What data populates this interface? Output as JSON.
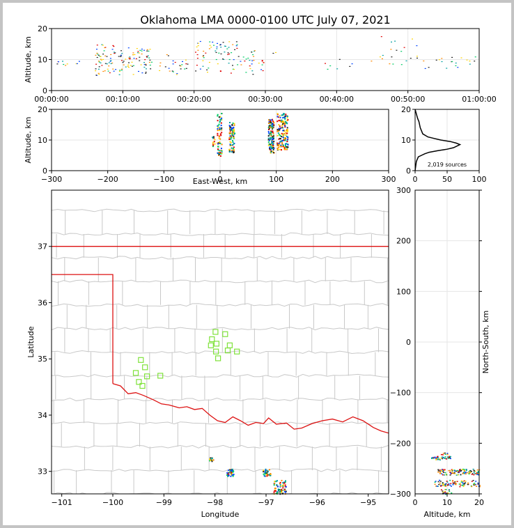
{
  "title": "Oklahoma LMA 0000-0100 UTC July 07, 2021",
  "colors": {
    "frame": "#000000",
    "grid": "#e6e6e6",
    "county": "#c8c8c8",
    "state_border": "#dd1111",
    "station": "#7fe23a",
    "histogram": "#000000",
    "sources": [
      "#0044ff",
      "#00a0a0",
      "#00cc66",
      "#ffd400",
      "#ff8800",
      "#e00000",
      "#202020"
    ]
  },
  "chart_data": [
    {
      "id": "time_altitude",
      "type": "scatter",
      "ylabel": "Altitude, km",
      "xlim_minutes": [
        0,
        60
      ],
      "ylim": [
        0,
        20
      ],
      "xtick_labels": [
        "00:00:00",
        "00:10:00",
        "00:20:00",
        "00:30:00",
        "00:40:00",
        "00:50:00",
        "01:00:00"
      ],
      "ytick_labels": [
        "0",
        "10",
        "20"
      ],
      "clusters": [
        {
          "t": [
            0.5,
            5
          ],
          "alt": [
            8,
            10
          ],
          "n": 10
        },
        {
          "t": [
            6,
            9.5
          ],
          "alt": [
            5,
            15
          ],
          "n": 60
        },
        {
          "t": [
            9.5,
            14
          ],
          "alt": [
            5,
            14
          ],
          "n": 70
        },
        {
          "t": [
            15,
            20
          ],
          "alt": [
            5,
            12
          ],
          "n": 25
        },
        {
          "t": [
            20,
            26
          ],
          "alt": [
            5,
            16
          ],
          "n": 70
        },
        {
          "t": [
            26,
            30
          ],
          "alt": [
            5,
            14
          ],
          "n": 30
        },
        {
          "t": [
            30,
            32
          ],
          "alt": [
            12,
            13
          ],
          "n": 2
        },
        {
          "t": [
            38,
            45
          ],
          "alt": [
            7,
            11
          ],
          "n": 8
        },
        {
          "t": [
            46,
            52
          ],
          "alt": [
            7,
            18
          ],
          "n": 20
        },
        {
          "t": [
            52,
            60
          ],
          "alt": [
            7,
            11
          ],
          "n": 20
        }
      ]
    },
    {
      "id": "ew_altitude",
      "type": "scatter",
      "xlabel": "East-West, km",
      "ylabel": "Altitude, km",
      "xlim": [
        -300,
        300
      ],
      "ylim": [
        0,
        20
      ],
      "xtick_labels": [
        "−300",
        "−200",
        "−100",
        "0",
        "100",
        "200",
        "300"
      ],
      "ytick_labels": [
        "0",
        "10",
        "20"
      ],
      "clusters": [
        {
          "x": [
            -15,
            -10
          ],
          "alt": [
            8,
            12
          ],
          "n": 12
        },
        {
          "x": [
            -6,
            2
          ],
          "alt": [
            5,
            19
          ],
          "n": 70
        },
        {
          "x": [
            15,
            25
          ],
          "alt": [
            6,
            16
          ],
          "n": 90
        },
        {
          "x": [
            85,
            95
          ],
          "alt": [
            6,
            17
          ],
          "n": 120
        },
        {
          "x": [
            100,
            120
          ],
          "alt": [
            7,
            19
          ],
          "n": 160
        }
      ]
    },
    {
      "id": "altitude_histogram",
      "type": "line",
      "xlim": [
        0,
        100
      ],
      "ylim": [
        0,
        20
      ],
      "xtick_labels": [
        "0",
        "50",
        "100"
      ],
      "ytick_labels": [
        "0",
        "10",
        "20"
      ],
      "annotation": "2,019 sources",
      "x": [
        0,
        2,
        5,
        10,
        15,
        22,
        35,
        50,
        60,
        65,
        70,
        64,
        55,
        40,
        30,
        20,
        12,
        10,
        8,
        6,
        4,
        2,
        0
      ],
      "y": [
        0,
        3,
        4.5,
        5,
        5.5,
        6,
        6.5,
        7,
        7.5,
        8,
        8.5,
        9,
        9.5,
        10,
        10.5,
        11,
        12,
        13,
        14,
        16,
        17,
        18.5,
        20
      ]
    },
    {
      "id": "plan_view",
      "type": "map",
      "xlabel": "Longitude",
      "ylabel": "Latitude",
      "xlim": [
        -101.2,
        -94.6
      ],
      "ylim": [
        32.6,
        38
      ],
      "xtick_labels": [
        "−101",
        "−100",
        "−99",
        "−98",
        "−97",
        "−96",
        "−95"
      ],
      "ytick_labels": [
        "33",
        "34",
        "35",
        "36",
        "37"
      ],
      "stations": [
        [
          -97.99,
          35.48
        ],
        [
          -97.8,
          35.44
        ],
        [
          -98.06,
          35.35
        ],
        [
          -97.97,
          35.27
        ],
        [
          -98.08,
          35.24
        ],
        [
          -97.71,
          35.24
        ],
        [
          -97.75,
          35.15
        ],
        [
          -97.98,
          35.13
        ],
        [
          -97.57,
          35.13
        ],
        [
          -97.94,
          35.01
        ],
        [
          -99.45,
          34.98
        ],
        [
          -99.37,
          34.85
        ],
        [
          -99.55,
          34.75
        ],
        [
          -99.33,
          34.69
        ],
        [
          -99.07,
          34.7
        ],
        [
          -99.49,
          34.59
        ],
        [
          -99.42,
          34.52
        ]
      ],
      "source_clusters": [
        {
          "lon": [
            -98.12,
            -98.04
          ],
          "lat": [
            33.19,
            33.25
          ],
          "n": 12
        },
        {
          "lon": [
            -97.78,
            -97.63
          ],
          "lat": [
            32.92,
            33.05
          ],
          "n": 35
        },
        {
          "lon": [
            -97.08,
            -96.92
          ],
          "lat": [
            32.92,
            33.05
          ],
          "n": 35
        },
        {
          "lon": [
            -96.86,
            -96.62
          ],
          "lat": [
            32.6,
            32.85
          ],
          "n": 70
        }
      ]
    },
    {
      "id": "altitude_ns",
      "type": "scatter",
      "xlabel": "Altitude, km",
      "ylabel": "North-South, km",
      "xlim": [
        0,
        20
      ],
      "ylim": [
        -300,
        300
      ],
      "xtick_labels": [
        "0",
        "10",
        "20"
      ],
      "ytick_labels": [
        "−300",
        "−200",
        "−100",
        "0",
        "100",
        "200",
        "300"
      ],
      "clusters": [
        {
          "alt": [
            5,
            11
          ],
          "ns": [
            -232,
            -225
          ],
          "n": 40
        },
        {
          "alt": [
            8,
            10
          ],
          "ns": [
            -222,
            -218
          ],
          "n": 8
        },
        {
          "alt": [
            7,
            20
          ],
          "ns": [
            -262,
            -250
          ],
          "n": 120
        },
        {
          "alt": [
            6,
            20
          ],
          "ns": [
            -285,
            -272
          ],
          "n": 100
        },
        {
          "alt": [
            8,
            12
          ],
          "ns": [
            -300,
            -290
          ],
          "n": 20
        }
      ]
    }
  ]
}
